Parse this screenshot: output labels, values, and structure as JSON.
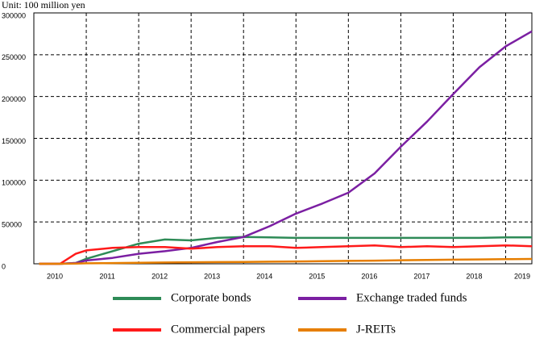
{
  "chart_data": {
    "type": "line",
    "unit_label": "Unit: 100 million yen",
    "x": [
      2010.1,
      2010.5,
      2010.8,
      2011,
      2011.5,
      2012,
      2012.5,
      2013,
      2013.5,
      2014,
      2014.5,
      2015,
      2015.5,
      2016,
      2016.5,
      2017,
      2017.5,
      2018,
      2018.5,
      2019,
      2019.5
    ],
    "series": [
      {
        "name": "Corporate bonds",
        "color": "#2e8b57",
        "values": [
          0,
          0,
          1000,
          6000,
          15000,
          24000,
          29000,
          28000,
          31000,
          32000,
          31500,
          31000,
          31000,
          31000,
          31000,
          31000,
          31000,
          31000,
          31000,
          31500,
          31500
        ]
      },
      {
        "name": "Exchange traded funds",
        "color": "#7b1fa2",
        "values": [
          0,
          0,
          1000,
          4000,
          7000,
          12000,
          15000,
          19000,
          26000,
          32000,
          45000,
          60000,
          72000,
          85000,
          108000,
          140000,
          170000,
          203000,
          235000,
          260000,
          278000
        ]
      },
      {
        "name": "Commercial papers",
        "color": "#ff1a1a",
        "values": [
          0,
          0,
          12000,
          16000,
          19000,
          20000,
          20000,
          18000,
          20000,
          21000,
          21000,
          19000,
          20000,
          21000,
          22000,
          20000,
          21000,
          20000,
          21000,
          22000,
          21000
        ]
      },
      {
        "name": "J-REITs",
        "color": "#e67e00",
        "values": [
          0,
          0,
          300,
          600,
          900,
          1200,
          1500,
          1800,
          2000,
          2200,
          2500,
          2800,
          3100,
          3500,
          3800,
          4200,
          4500,
          4900,
          5200,
          5500,
          5800
        ]
      }
    ],
    "xlim": [
      2010,
      2019.5
    ],
    "xticks": [
      2010,
      2011,
      2012,
      2013,
      2014,
      2015,
      2016,
      2017,
      2018,
      2019
    ],
    "ylim": [
      0,
      300000
    ],
    "yticks": [
      0,
      50000,
      100000,
      150000,
      200000,
      250000,
      300000
    ],
    "grid": true
  }
}
